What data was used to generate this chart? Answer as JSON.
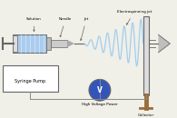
{
  "bg_color": "#f0efe8",
  "syringe_pump_label": "Syringe Pump",
  "solution_label": "Solution",
  "needle_label": "Needle",
  "jet_label": "Jet",
  "electrospinning_label": "Electrospinning jet",
  "hvpower_label": "High Voltage Power",
  "collector_label": "Collector",
  "line_color": "#666666",
  "syringe_body_color": "#aaccee",
  "syringe_metal_color": "#bbbbbb",
  "spiral_color": "#99ccee",
  "collector_plate_color": "#dddddd",
  "collector_stand_color": "#9b6b3a",
  "hvpower_color": "#3355bb",
  "pump_box_color": "#ffffff",
  "needle_color": "#cccccc",
  "wire_color": "#888888"
}
